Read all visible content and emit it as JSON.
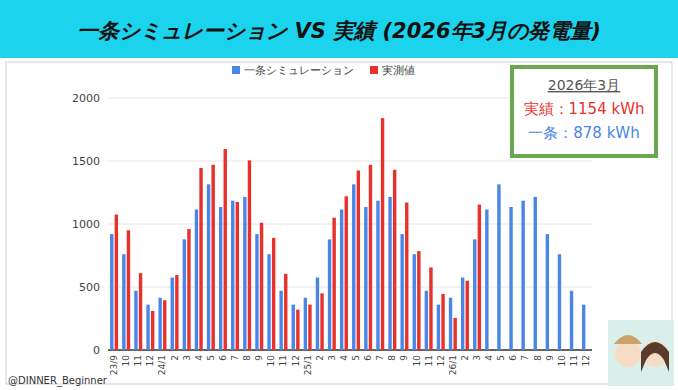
{
  "chart_data": {
    "type": "bar",
    "title": "一条シミュレーション VS 実績 (2026年3月の発電量)",
    "categories": [
      "23/9",
      "10",
      "11",
      "12",
      "24/1",
      "2",
      "3",
      "4",
      "5",
      "6",
      "7",
      "8",
      "9",
      "10",
      "11",
      "12",
      "25/1",
      "2",
      "3",
      "4",
      "5",
      "6",
      "7",
      "8",
      "9",
      "10",
      "11",
      "12",
      "26/1",
      "2",
      "3",
      "4",
      "5",
      "6",
      "7",
      "8",
      "9",
      "10",
      "11",
      "12"
    ],
    "series": [
      {
        "name": "一条シミュレーション",
        "color": "#4a86e8",
        "values": [
          920,
          760,
          470,
          360,
          415,
          575,
          878,
          1115,
          1315,
          1135,
          1185,
          1215,
          920,
          760,
          470,
          360,
          415,
          575,
          878,
          1115,
          1315,
          1135,
          1185,
          1215,
          920,
          760,
          470,
          360,
          415,
          575,
          878,
          1115,
          1315,
          1135,
          1185,
          1215,
          920,
          760,
          470,
          360
        ]
      },
      {
        "name": "実測値",
        "color": "#e8312a",
        "values": [
          1075,
          950,
          610,
          310,
          395,
          595,
          960,
          1445,
          1470,
          1595,
          1175,
          1505,
          1010,
          890,
          605,
          320,
          360,
          450,
          1050,
          1220,
          1425,
          1470,
          1840,
          1430,
          1170,
          785,
          655,
          445,
          255,
          550,
          1154,
          null,
          null,
          null,
          null,
          null,
          null,
          null,
          null,
          null
        ]
      }
    ],
    "ylim": [
      0,
      2000
    ],
    "yticks": [
      0,
      500,
      1000,
      1500,
      2000
    ],
    "grid": true,
    "legend": "top",
    "annotations": [
      "2026年3月",
      "実績：1154 kWh",
      "一条：878 kWh"
    ],
    "credit": "@DINNER_Beginner"
  }
}
